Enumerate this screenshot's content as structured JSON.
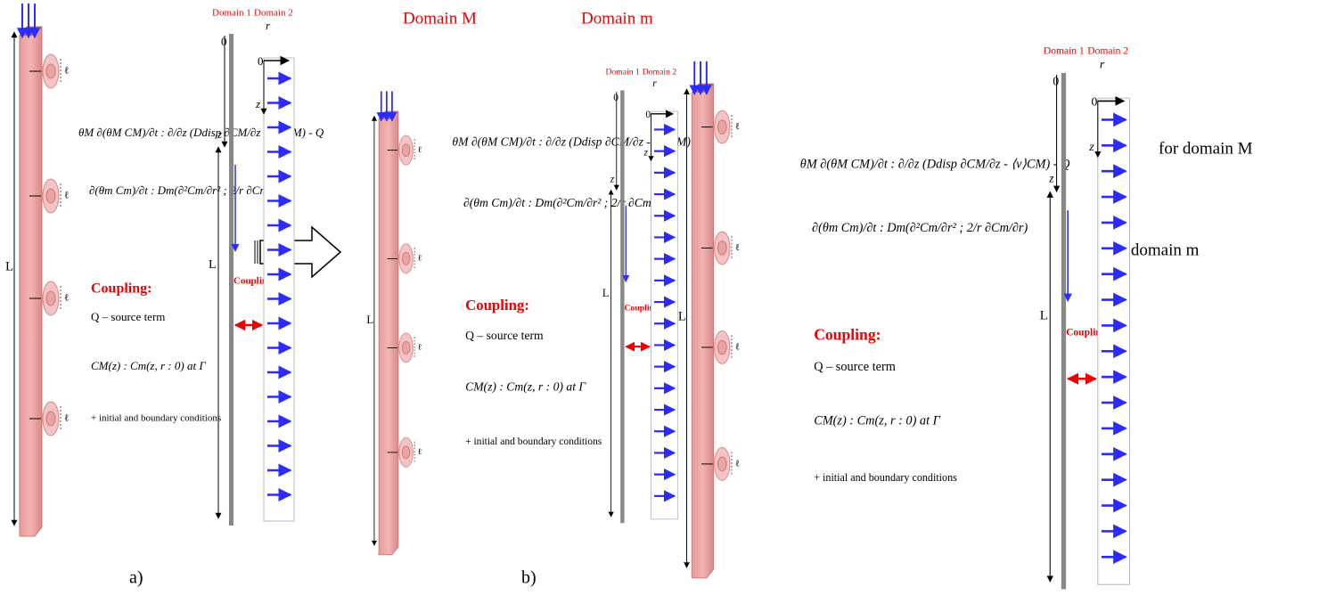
{
  "labels": {
    "domain_M": "Domain M",
    "domain_m": "Domain m",
    "a": "a)",
    "b": "b)",
    "for_M": "for domain M",
    "for_m": "for domain m"
  },
  "panels": [
    {
      "column_length": "L",
      "ell": "ℓ",
      "equation_1": "θM ∂(θM CM)/∂t : ∂/∂z (Ddisp ∂CM/∂z - ⟨v⟩CM) - Q",
      "equation_2": "∂(θm Cm)/∂t : Dm(∂²Cm/∂r² ; 2/r ∂Cm/∂r)",
      "coupling_heading": "Coupling:",
      "source_term": "Q – source term",
      "coupling_condition": "CM(z) : Cm(z, r : 0) at Γ",
      "conditions": "+ initial and boundary conditions",
      "domain_1": "Domain 1",
      "domain_2": "Domain 2",
      "radial": "r",
      "origin": "0",
      "depth": "z",
      "domain_length": "L",
      "coupling": "Coupling"
    },
    {
      "column_length": "L",
      "ell": "ℓ",
      "equation_1": "θM ∂(θM CM)/∂t : ∂/∂z (Ddisp ∂CM/∂z - ⟨v⟩CM) - Q",
      "equation_2": "∂(θm Cm)/∂t : Dm(∂²Cm/∂r² ; 2/r ∂Cm/∂r)",
      "coupling_heading": "Coupling:",
      "source_term": "Q – source term",
      "coupling_condition": "CM(z) : Cm(z, r : 0) at Γ",
      "conditions": "+ initial and boundary conditions",
      "domain_1": "Domain 1",
      "domain_2": "Domain 2",
      "radial": "r",
      "origin": "0",
      "depth": "z",
      "domain_length": "L",
      "coupling": "Coupling"
    },
    {
      "column_length": "L",
      "ell": "ℓ",
      "equation_1": "θM ∂(θM CM)/∂t : ∂/∂z (Ddisp ∂CM/∂z - ⟨v⟩CM) - Q",
      "equation_2": "∂(θm Cm)/∂t : Dm(∂²Cm/∂r² ; 2/r ∂Cm/∂r)",
      "coupling_heading": "Coupling:",
      "source_term": "Q – source term",
      "coupling_condition": "CM(z) : Cm(z, r : 0) at Γ",
      "conditions": "+ initial and boundary conditions",
      "domain_1": "Domain 1",
      "domain_2": "Domain 2",
      "radial": "r",
      "origin": "0",
      "depth": "z",
      "domain_length": "L",
      "coupling": "Coupling"
    }
  ]
}
